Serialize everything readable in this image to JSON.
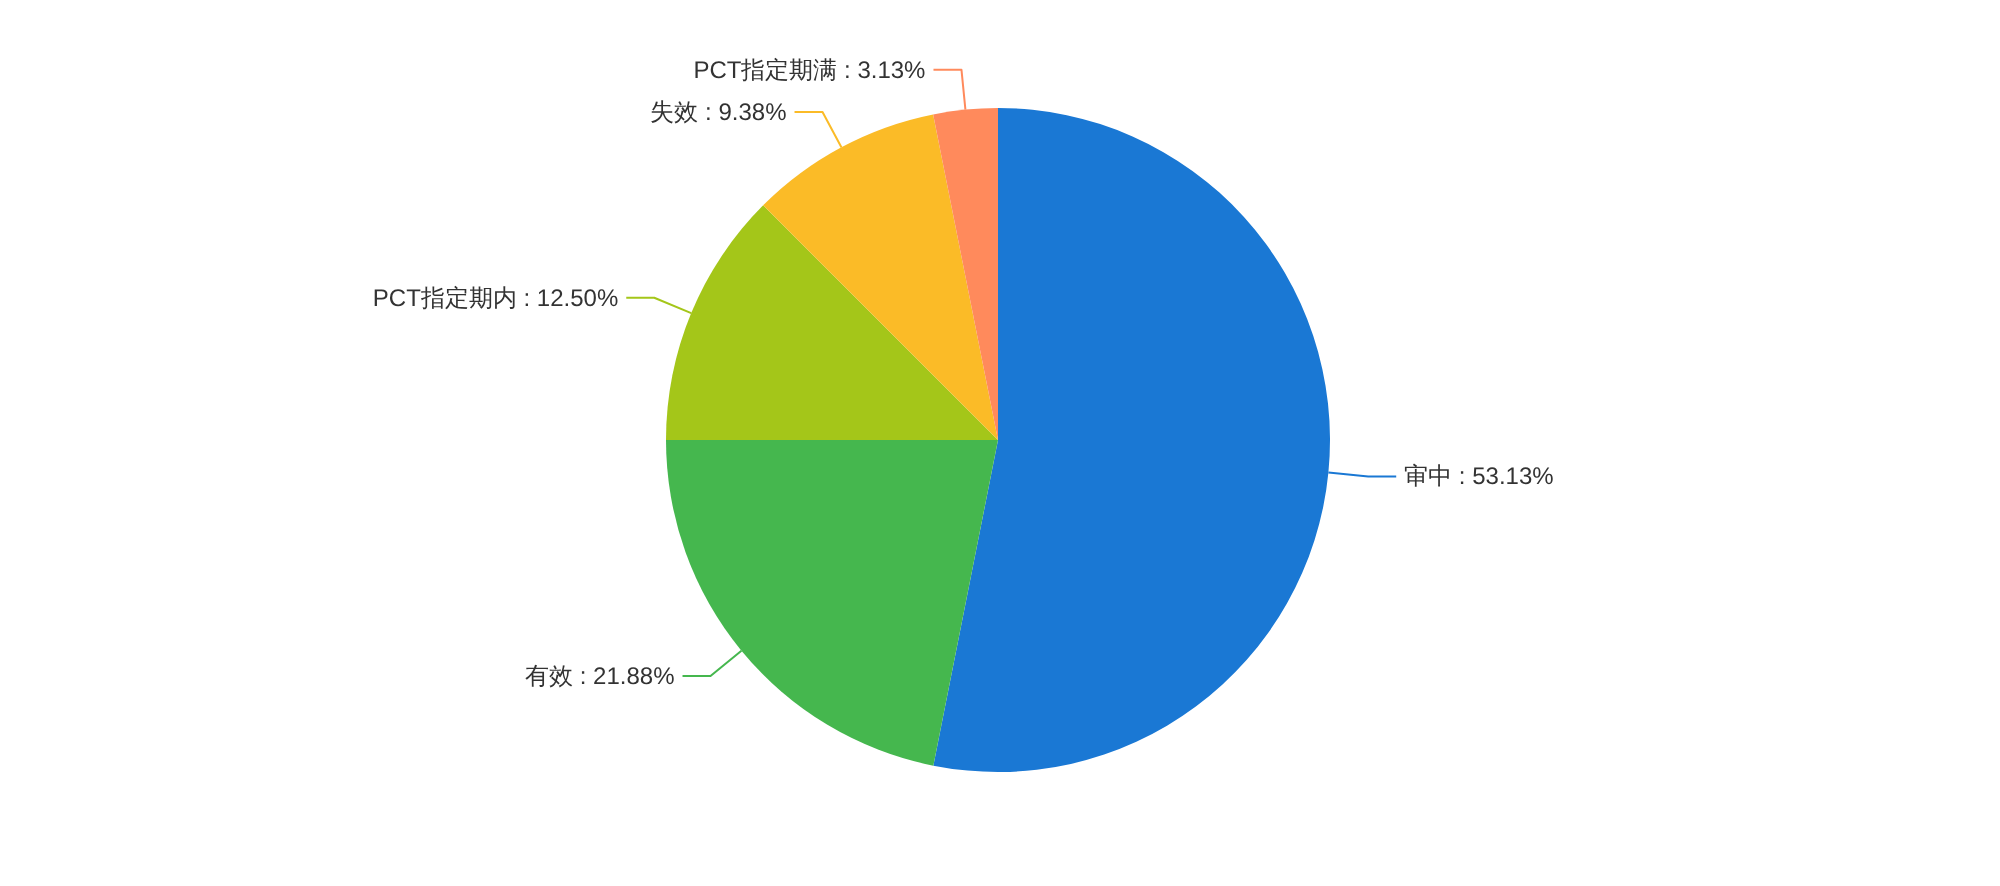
{
  "chart_data": {
    "type": "pie",
    "categories": [
      "审中",
      "有效",
      "PCT指定期内",
      "失效",
      "PCT指定期满"
    ],
    "values": [
      53.13,
      21.88,
      12.5,
      9.38,
      3.13
    ],
    "colors": [
      "#1a78d4",
      "#45b74e",
      "#a4c619",
      "#fbbb27",
      "#ff8a5c"
    ],
    "value_labels": [
      "53.13%",
      "21.88%",
      "12.50%",
      "9.38%",
      "3.13%"
    ]
  }
}
